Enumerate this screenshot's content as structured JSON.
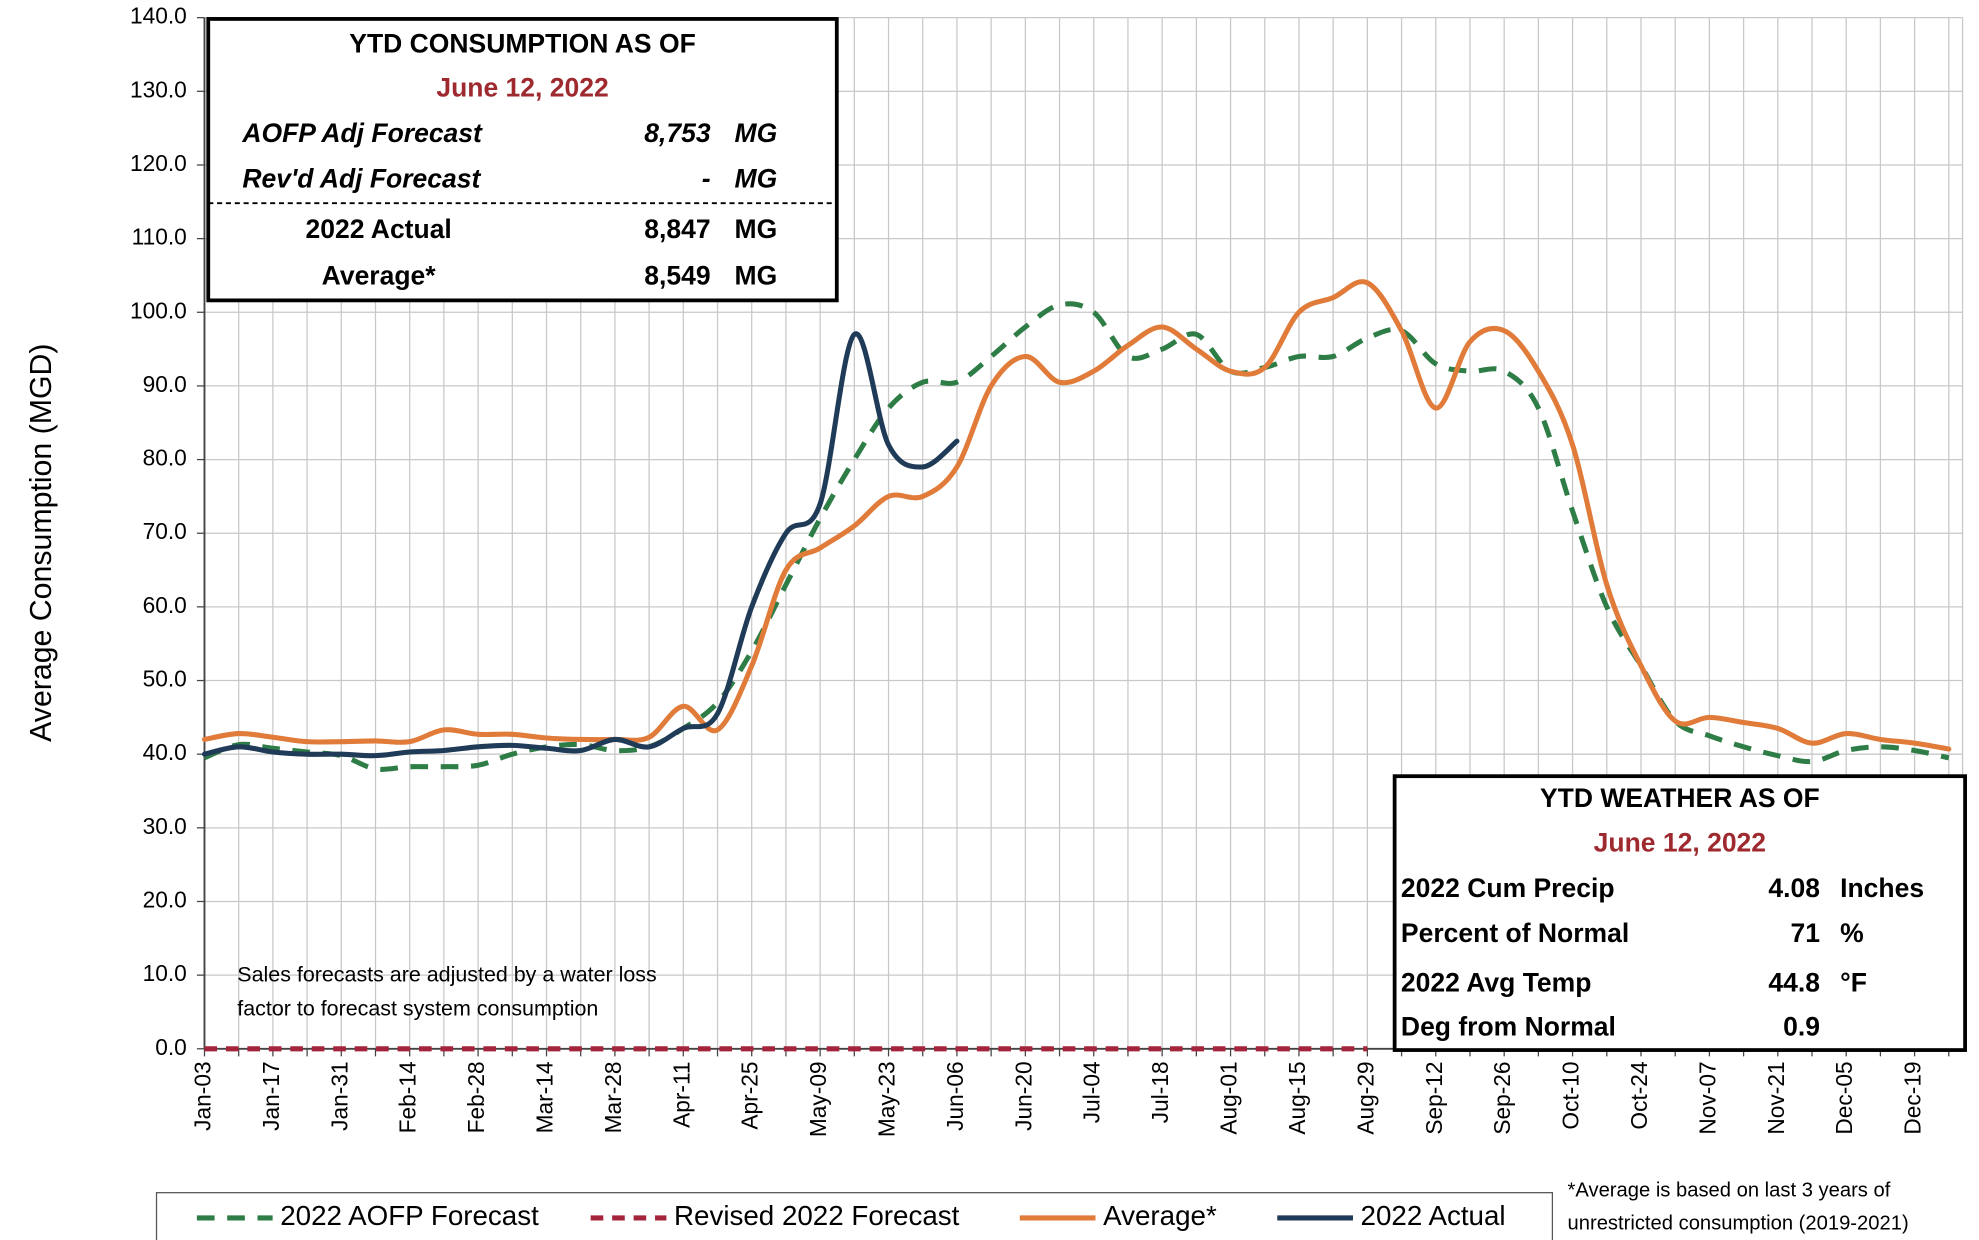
{
  "chart_data": {
    "type": "line",
    "y_label": "Average Consumption (MGD)",
    "categories": [
      "Jan-03",
      null,
      "Jan-17",
      null,
      "Jan-31",
      null,
      "Feb-14",
      null,
      "Feb-28",
      null,
      "Mar-14",
      null,
      "Mar-28",
      null,
      "Apr-11",
      null,
      "Apr-25",
      null,
      "May-09",
      null,
      "May-23",
      null,
      "Jun-06",
      null,
      "Jun-20",
      null,
      "Jul-04",
      null,
      "Jul-18",
      null,
      "Aug-01",
      null,
      "Aug-15",
      null,
      "Aug-29",
      null,
      "Sep-12",
      null,
      "Sep-26",
      null,
      "Oct-10",
      null,
      "Oct-24",
      null,
      "Nov-07",
      null,
      "Nov-21",
      null,
      "Dec-05",
      null,
      "Dec-19",
      null
    ],
    "series": [
      {
        "name": "2022 AOFP Forecast",
        "color": "#2e7d46",
        "dash": "14 10",
        "values": [
          39.5,
          41.3,
          40.8,
          40.3,
          39.8,
          38,
          38.3,
          38.3,
          38.5,
          40,
          41,
          41.3,
          40.5,
          41,
          43.5,
          47,
          54,
          63,
          72,
          80,
          87,
          90.5,
          90.5,
          94,
          98,
          101,
          100,
          94,
          95,
          97,
          92,
          92.5,
          94,
          94,
          96.5,
          97.5,
          93,
          92,
          92,
          87,
          73,
          60,
          52,
          44.5,
          42.5,
          41,
          39.8,
          39,
          40.5,
          41,
          40.5,
          39.5
        ]
      },
      {
        "name": "Revised 2022 Forecast",
        "color": "#a3243b",
        "dash": "10 7",
        "values": [
          0,
          0,
          0,
          0,
          0,
          0,
          0,
          0,
          0,
          0,
          0,
          0,
          0,
          0,
          0,
          0,
          0,
          0,
          0,
          0,
          0,
          0,
          0,
          0,
          0,
          0,
          0,
          0,
          0,
          0,
          0,
          0,
          0,
          0,
          0,
          null,
          null,
          null,
          null,
          null,
          null,
          null,
          null,
          null,
          null,
          null,
          null,
          null,
          null,
          null,
          null,
          null
        ]
      },
      {
        "name": "Average*",
        "color": "#e07b39",
        "dash": null,
        "values": [
          42,
          42.8,
          42.3,
          41.7,
          41.7,
          41.8,
          41.7,
          43.3,
          42.7,
          42.7,
          42.2,
          42,
          42,
          42.3,
          46.5,
          43.3,
          52,
          65,
          68,
          71,
          75,
          75,
          79,
          90,
          94,
          90.5,
          92,
          95.5,
          98,
          95,
          92,
          92.5,
          100,
          102,
          104,
          97.5,
          87,
          96,
          97.5,
          92,
          82,
          63,
          52,
          44.5,
          45,
          44.3,
          43.5,
          41.5,
          42.8,
          42,
          41.5,
          40.7
        ]
      },
      {
        "name": "2022 Actual",
        "color": "#1f3b57",
        "dash": null,
        "values": [
          40,
          41,
          40.3,
          40,
          40,
          39.8,
          40.3,
          40.5,
          41,
          41.2,
          40.8,
          40.5,
          42,
          41,
          43.5,
          45.5,
          60,
          70,
          74,
          97,
          82,
          79,
          82.5,
          null,
          null,
          null,
          null,
          null,
          null,
          null,
          null,
          null,
          null,
          null,
          null,
          null,
          null,
          null,
          null,
          null,
          null,
          null,
          null,
          null,
          null,
          null,
          null,
          null,
          null,
          null,
          null,
          null
        ]
      }
    ],
    "ylim": [
      0,
      140
    ],
    "yticks": [
      {
        "value": 0,
        "label": "0.0"
      },
      {
        "value": 10,
        "label": "10.0"
      },
      {
        "value": 20,
        "label": "20.0"
      },
      {
        "value": 30,
        "label": "30.0"
      },
      {
        "value": 40,
        "label": "40.0"
      },
      {
        "value": 50,
        "label": "50.0"
      },
      {
        "value": 60,
        "label": "60.0"
      },
      {
        "value": 70,
        "label": "70.0"
      },
      {
        "value": 80,
        "label": "80.0"
      },
      {
        "value": 90,
        "label": "90.0"
      },
      {
        "value": 100,
        "label": "100.0"
      },
      {
        "value": 110,
        "label": "110.0"
      },
      {
        "value": 120,
        "label": "120.0"
      },
      {
        "value": 130,
        "label": "130.0"
      },
      {
        "value": 140,
        "label": "140.0"
      }
    ],
    "grid": true,
    "note": [
      "Sales forecasts are adjusted by a water loss",
      "factor to forecast system consumption"
    ],
    "footnote": [
      "*Average is based on last 3 years of",
      "unrestricted consumption (2019-2021)"
    ],
    "consumption_box": {
      "title": "YTD CONSUMPTION AS OF",
      "date": "June 12, 2022",
      "rows": [
        [
          "AOFP Adj Forecast",
          "8,753",
          "MG"
        ],
        [
          "Rev'd Adj Forecast",
          "-",
          "MG"
        ],
        [
          "2022 Actual",
          "8,847",
          "MG"
        ],
        [
          "Average*",
          "8,549",
          "MG"
        ]
      ]
    },
    "weather_box": {
      "title": "YTD WEATHER AS OF",
      "date": "June 12, 2022",
      "rows": [
        [
          "2022 Cum Precip",
          "4.08",
          "Inches"
        ],
        [
          "Percent of Normal",
          "71",
          "%"
        ],
        [
          "2022 Avg Temp",
          "44.8",
          "°F"
        ],
        [
          "Deg from Normal",
          "0.9"
        ]
      ]
    }
  }
}
